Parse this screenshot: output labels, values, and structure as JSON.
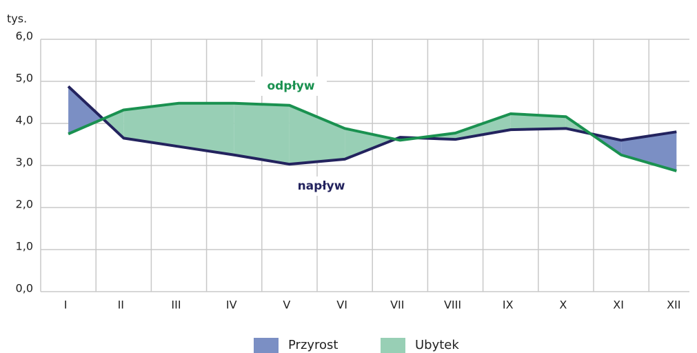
{
  "chart_data": {
    "type": "line",
    "y_unit": "tys.",
    "categories": [
      "I",
      "II",
      "III",
      "IV",
      "V",
      "VI",
      "VII",
      "VIII",
      "IX",
      "X",
      "XI",
      "XII"
    ],
    "series": [
      {
        "name": "napływ",
        "color": "#23235e",
        "values": [
          4.88,
          3.65,
          3.45,
          3.25,
          3.03,
          3.15,
          3.67,
          3.62,
          3.85,
          3.88,
          3.6,
          3.8
        ]
      },
      {
        "name": "odpływ",
        "color": "#1a9150",
        "values": [
          3.75,
          4.32,
          4.48,
          4.48,
          4.43,
          3.88,
          3.6,
          3.77,
          4.23,
          4.16,
          3.25,
          2.87
        ]
      }
    ],
    "fill_legend": [
      {
        "name": "Przyrost",
        "color": "#7b8fc4"
      },
      {
        "name": "Ubytek",
        "color": "#98cfb5"
      }
    ],
    "ylim": [
      0,
      6
    ],
    "yticks": [
      {
        "value": 0,
        "label": "0,0"
      },
      {
        "value": 1,
        "label": "1,0"
      },
      {
        "value": 2,
        "label": "2,0"
      },
      {
        "value": 3,
        "label": "3,0"
      },
      {
        "value": 4,
        "label": "4,0"
      },
      {
        "value": 5,
        "label": "5,0"
      },
      {
        "value": 6,
        "label": "6,0"
      }
    ],
    "grid": true
  }
}
